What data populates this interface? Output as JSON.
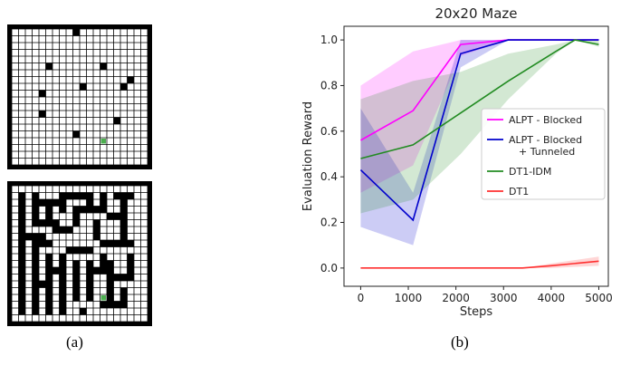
{
  "captions": {
    "a": "(a)",
    "b": "(b)"
  },
  "mazes": {
    "top": {
      "size": 20,
      "border_color": "#000000",
      "wall_color": "#000000",
      "goal_color": "#4caf50",
      "blocked_cells": [
        [
          9,
          0
        ],
        [
          5,
          5
        ],
        [
          13,
          5
        ],
        [
          17,
          7
        ],
        [
          10,
          8
        ],
        [
          4,
          9
        ],
        [
          16,
          8
        ],
        [
          4,
          12
        ],
        [
          15,
          13
        ],
        [
          9,
          15
        ]
      ],
      "goal_cell": [
        13,
        16
      ]
    },
    "bottom": {
      "size": 20,
      "border_color": "#000000",
      "wall_color": "#000000",
      "goal_color": "#4caf50",
      "goal_cell": [
        13,
        16
      ]
    }
  },
  "chart_data": {
    "type": "line",
    "title": "20x20 Maze",
    "xlabel": "Steps",
    "ylabel": "Evaluation Reward",
    "xlim": [
      -350,
      5200
    ],
    "ylim": [
      -0.08,
      1.06
    ],
    "xticks": [
      0,
      1000,
      2000,
      3000,
      4000,
      5000
    ],
    "yticks": [
      0.0,
      0.2,
      0.4,
      0.6,
      0.8,
      1.0
    ],
    "grid": false,
    "legend_position": "center-right",
    "series": [
      {
        "name": "ALPT - Blocked",
        "color": "#ff00ff",
        "x": [
          0,
          1100,
          2100,
          3100,
          4100,
          5000
        ],
        "y": [
          0.56,
          0.69,
          0.98,
          1.0,
          1.0,
          1.0
        ],
        "lower": [
          0.33,
          0.45,
          0.93,
          1.0,
          1.0,
          1.0
        ],
        "upper": [
          0.8,
          0.95,
          1.0,
          1.0,
          1.0,
          1.0
        ]
      },
      {
        "name": "ALPT - Blocked\n+ Tunneled",
        "color": "#0000cc",
        "x": [
          0,
          1100,
          2100,
          3100,
          4100,
          5000
        ],
        "y": [
          0.43,
          0.21,
          0.94,
          1.0,
          1.0,
          1.0
        ],
        "lower": [
          0.18,
          0.1,
          0.88,
          1.0,
          1.0,
          1.0
        ],
        "upper": [
          0.7,
          0.33,
          1.0,
          1.0,
          1.0,
          1.0
        ]
      },
      {
        "name": "DT1-IDM",
        "color": "#228b22",
        "x": [
          0,
          1100,
          2100,
          3100,
          4100,
          4500,
          5000
        ],
        "y": [
          0.48,
          0.54,
          0.68,
          0.82,
          0.95,
          1.0,
          0.98
        ],
        "lower": [
          0.24,
          0.3,
          0.5,
          0.74,
          0.94,
          1.0,
          0.97
        ],
        "upper": [
          0.74,
          0.82,
          0.86,
          0.94,
          0.98,
          1.0,
          1.0
        ]
      },
      {
        "name": "DT1",
        "color": "#ff3030",
        "x": [
          0,
          1000,
          2000,
          3000,
          3400,
          4000,
          5000
        ],
        "y": [
          0.0,
          0.0,
          0.0,
          0.0,
          0.0,
          0.01,
          0.03
        ],
        "lower": [
          0.0,
          0.0,
          0.0,
          0.0,
          0.0,
          0.0,
          0.01
        ],
        "upper": [
          0.0,
          0.0,
          0.0,
          0.0,
          0.0,
          0.02,
          0.05
        ]
      }
    ]
  }
}
